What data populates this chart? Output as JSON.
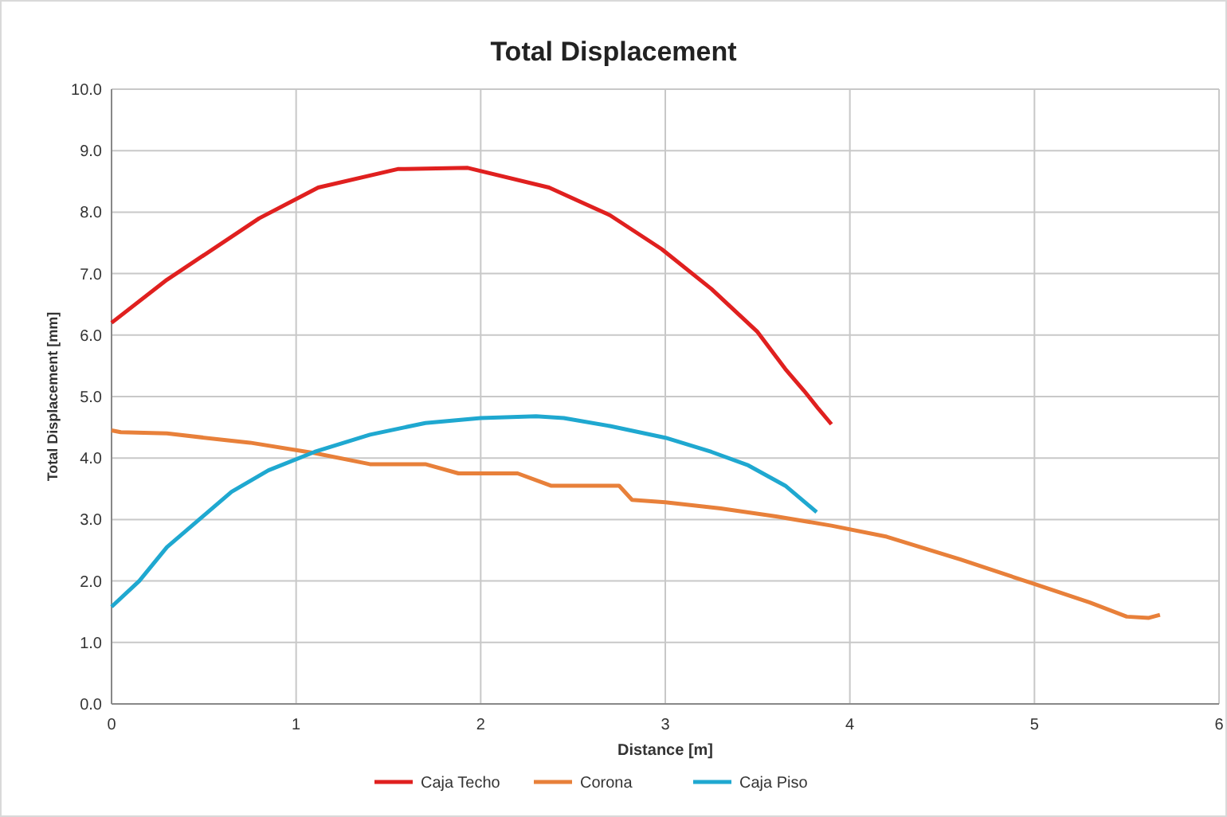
{
  "chart_data": {
    "type": "line",
    "title": "Total Displacement",
    "xlabel": "Distance [m]",
    "ylabel": "Total Displacement [mm]",
    "xlim": [
      0,
      6
    ],
    "xticks": [
      0,
      1,
      2,
      3,
      4,
      5,
      6
    ],
    "ylim": [
      0,
      10
    ],
    "yticks": [
      {
        "value": 0,
        "label": "0.0"
      },
      {
        "value": 1,
        "label": "1.0"
      },
      {
        "value": 2,
        "label": "2.0"
      },
      {
        "value": 3,
        "label": "3.0"
      },
      {
        "value": 4,
        "label": "4.0"
      },
      {
        "value": 5,
        "label": "5.0"
      },
      {
        "value": 6,
        "label": "6.0"
      },
      {
        "value": 7,
        "label": "7.0"
      },
      {
        "value": 8,
        "label": "8.0"
      },
      {
        "value": 9,
        "label": "9.0"
      },
      {
        "value": 10,
        "label": "10.0"
      }
    ],
    "grid": true,
    "legend": "bottom",
    "marker": "none",
    "line_style": "solid",
    "series": [
      {
        "name": "Caja Techo",
        "color": "#e0201f",
        "x": [
          0,
          0.3,
          0.8,
          1.12,
          1.55,
          1.93,
          2.37,
          2.7,
          2.98,
          3.25,
          3.5,
          3.65,
          3.75,
          3.83,
          3.9
        ],
        "values": [
          6.2,
          6.9,
          7.9,
          8.4,
          8.7,
          8.72,
          8.4,
          7.95,
          7.4,
          6.75,
          6.05,
          5.45,
          5.1,
          4.8,
          4.55
        ]
      },
      {
        "name": "Corona",
        "color": "#e8803a",
        "x": [
          0,
          0.05,
          0.3,
          0.65,
          0.75,
          1.1,
          1.4,
          1.7,
          1.88,
          2.2,
          2.38,
          2.75,
          2.82,
          3.0,
          3.3,
          3.6,
          3.9,
          4.2,
          4.6,
          5.0,
          5.3,
          5.5,
          5.62,
          5.68
        ],
        "values": [
          4.45,
          4.42,
          4.4,
          4.28,
          4.25,
          4.08,
          3.9,
          3.9,
          3.75,
          3.75,
          3.55,
          3.55,
          3.32,
          3.28,
          3.18,
          3.05,
          2.9,
          2.72,
          2.35,
          1.95,
          1.65,
          1.42,
          1.4,
          1.45
        ]
      },
      {
        "name": "Caja Piso",
        "color": "#1fa8d0",
        "x": [
          0,
          0.15,
          0.3,
          0.65,
          0.85,
          1.1,
          1.4,
          1.7,
          2.0,
          2.3,
          2.45,
          2.7,
          3.0,
          3.25,
          3.45,
          3.65,
          3.82
        ],
        "values": [
          1.58,
          2.0,
          2.55,
          3.45,
          3.8,
          4.1,
          4.38,
          4.57,
          4.65,
          4.68,
          4.65,
          4.52,
          4.33,
          4.1,
          3.88,
          3.55,
          3.12
        ]
      }
    ]
  }
}
